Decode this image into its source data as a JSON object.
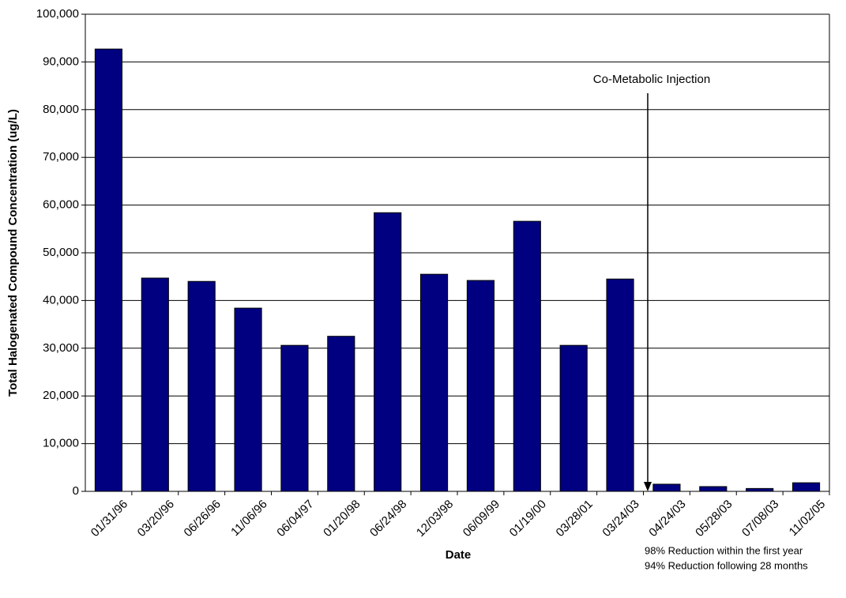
{
  "chart_data": {
    "type": "bar",
    "x_label": "Date",
    "y_label": "Total Halogenated Compound Concentration (ug/L)",
    "categories": [
      "01/31/96",
      "03/20/96",
      "06/26/96",
      "11/06/96",
      "06/04/97",
      "01/20/98",
      "06/24/98",
      "12/03/98",
      "06/09/99",
      "01/19/00",
      "03/28/01",
      "03/24/03",
      "04/24/03",
      "05/28/03",
      "07/08/03",
      "11/02/05"
    ],
    "values": [
      92700,
      44700,
      44000,
      38400,
      30600,
      32500,
      58400,
      45500,
      44200,
      56600,
      30600,
      44500,
      1500,
      1000,
      600,
      1800
    ],
    "color": "#000080",
    "ylim": [
      0,
      100000
    ],
    "yticks": [
      0,
      {
        "value": 10000,
        "label": "10,000"
      },
      {
        "value": 20000,
        "label": "20,000"
      },
      {
        "value": 30000,
        "label": "30,000"
      },
      {
        "value": 40000,
        "label": "40,000"
      },
      {
        "value": 50000,
        "label": "50,000"
      },
      {
        "value": 60000,
        "label": "60,000"
      },
      {
        "value": 70000,
        "label": "70,000"
      },
      {
        "value": 80000,
        "label": "80,000"
      },
      {
        "value": 90000,
        "label": "90,000"
      },
      {
        "value": 100000,
        "label": "100,000"
      }
    ],
    "grid": true,
    "annotation": "Co-Metabolic Injection",
    "notes": [
      "98% Reduction within the first year",
      "94% Reduction following 28 months"
    ]
  }
}
